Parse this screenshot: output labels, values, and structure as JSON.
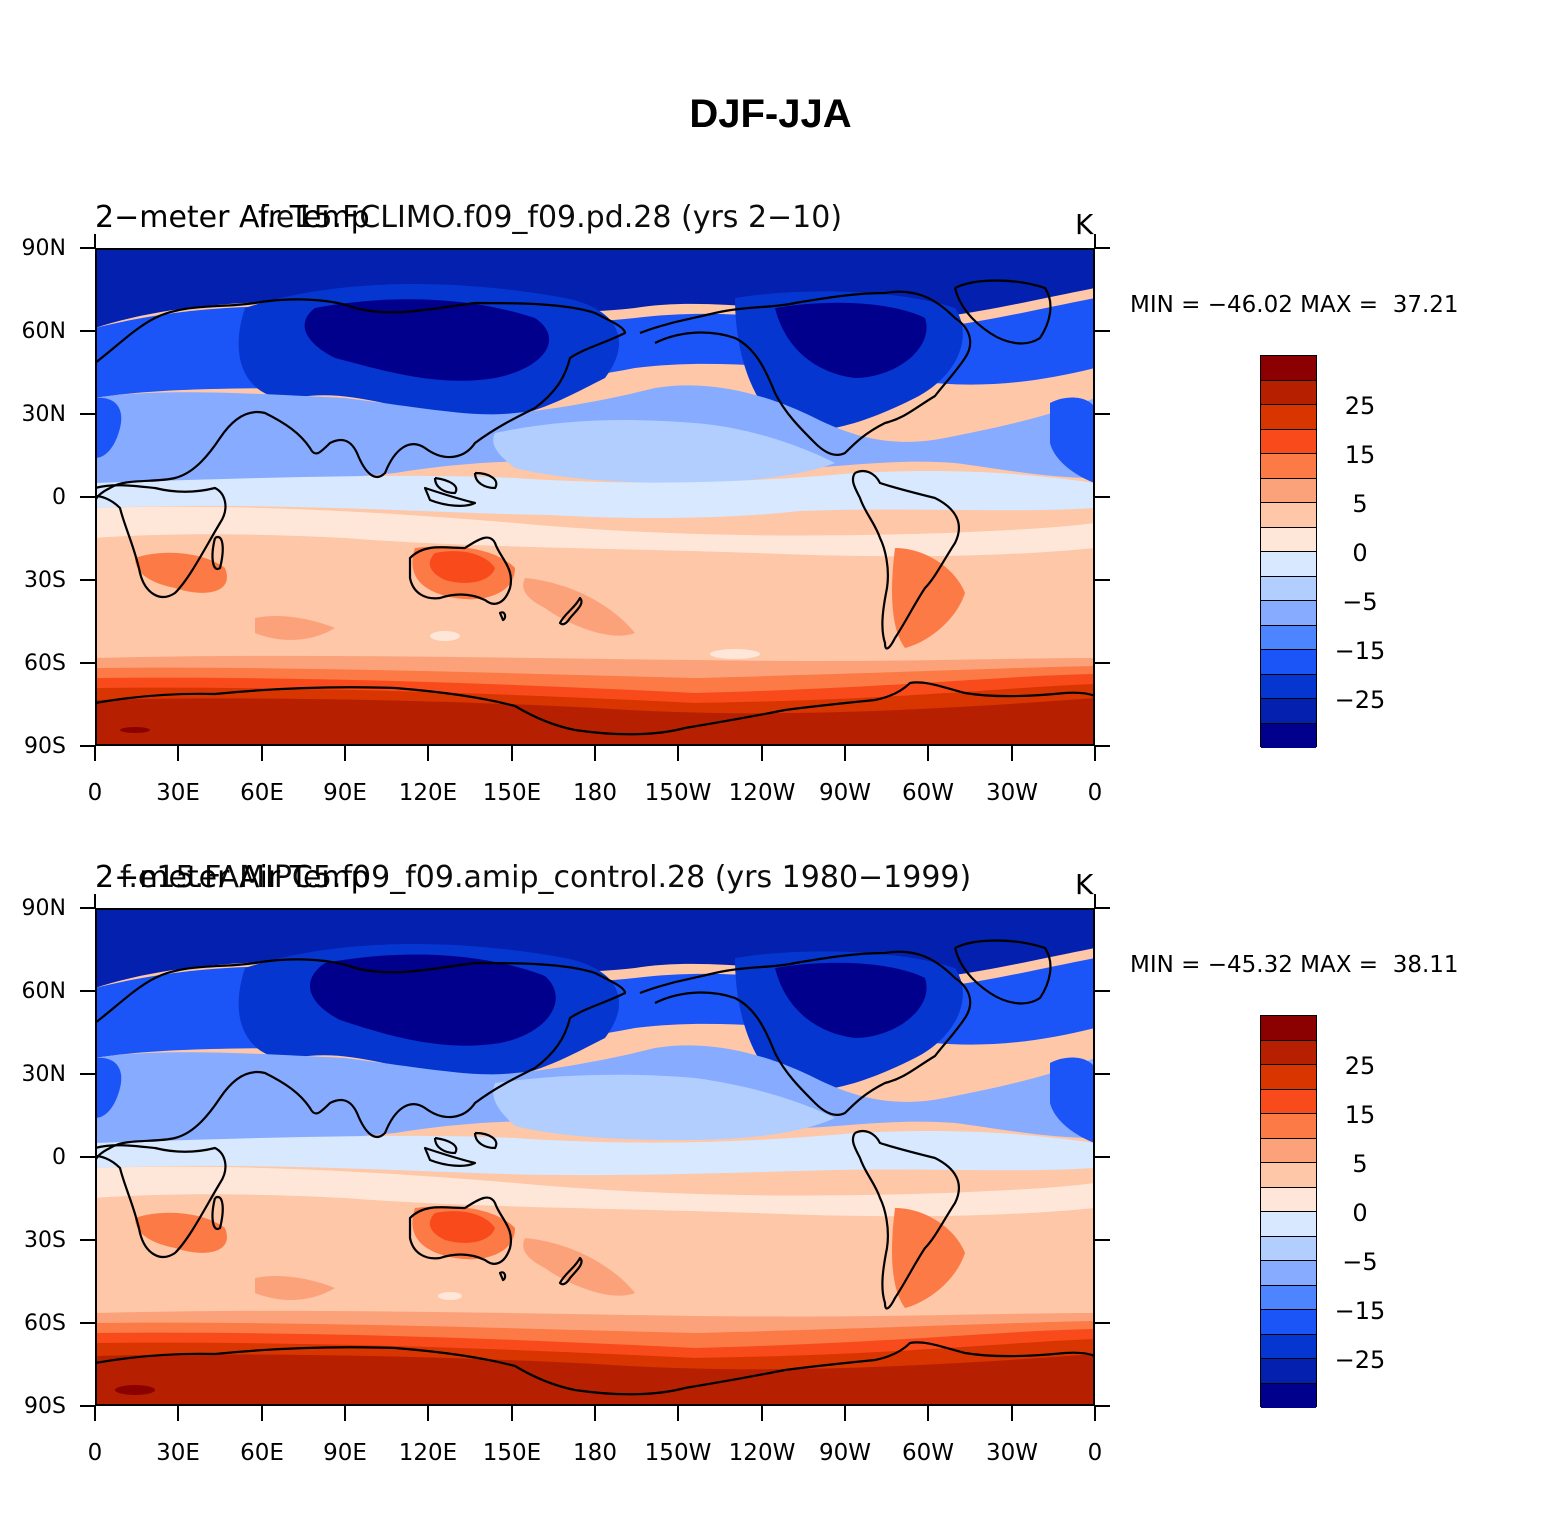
{
  "figure": {
    "title": "DJF-JJA"
  },
  "x_ticks": [
    "0",
    "30E",
    "60E",
    "90E",
    "120E",
    "150E",
    "180",
    "150W",
    "120W",
    "90W",
    "60W",
    "30W",
    "0"
  ],
  "y_ticks": [
    "90N",
    "60N",
    "30N",
    "0",
    "30S",
    "60S",
    "90S"
  ],
  "colorbar": {
    "colors": [
      "#8b0000",
      "#b62000",
      "#d83500",
      "#f84a1a",
      "#fb7a45",
      "#fca27a",
      "#fdc7a8",
      "#fee7d8",
      "#d7e8ff",
      "#b1ceff",
      "#86abff",
      "#4d84ff",
      "#1b55f7",
      "#0636d0",
      "#0320ae",
      "#00008c"
    ],
    "labels": [
      "25",
      "15",
      "5",
      "0",
      "−5",
      "−15",
      "−25"
    ]
  },
  "panels": [
    {
      "title_variable": "2−meter Air Temp",
      "title_case": "f.e15.FCLIMO.f09_f09.pd.28 (yrs 2−10)",
      "units": "K",
      "min_label": "MIN = ",
      "min_value": "−46.02",
      "max_label": "MAX = ",
      "max_value": "37.21",
      "stats_text": "MIN = −46.02 MAX =  37.21"
    },
    {
      "title_variable": "2−meter Air Temp",
      "title_case": "f.e15.FAMIPC5.f09_f09.amip_control.28 (yrs 1980−1999)",
      "units": "K",
      "min_label": "MIN = ",
      "min_value": "−45.32",
      "max_label": "MAX = ",
      "max_value": "38.11",
      "stats_text": "MIN = −45.32 MAX =  38.11"
    }
  ]
}
